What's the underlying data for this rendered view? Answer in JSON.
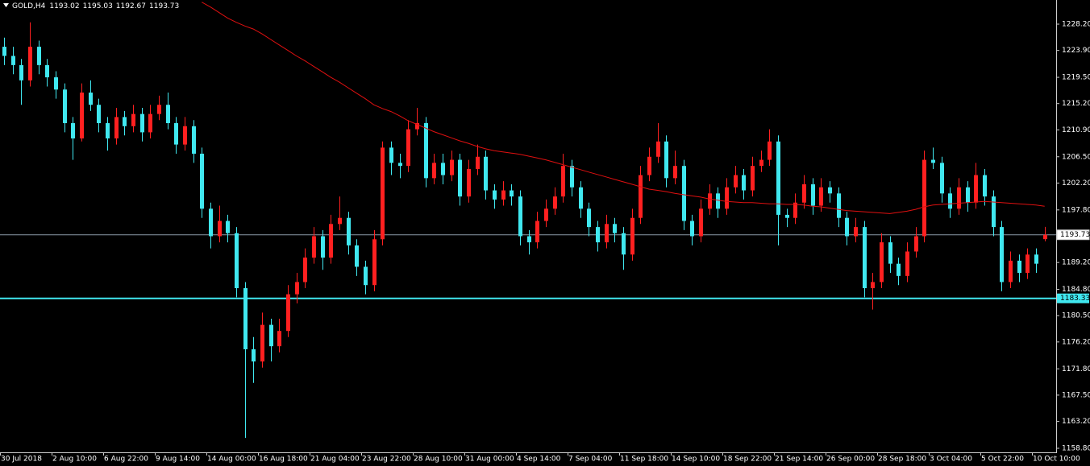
{
  "chart_data": {
    "type": "candlestick",
    "title": "GOLD,H4",
    "quote": [
      1193.02,
      1195.03,
      1192.67,
      1193.73
    ],
    "up_color": "#ff2020",
    "down_color": "#40e8f0",
    "ylim": [
      1158.14,
      1232.15
    ],
    "yticks": [
      {
        "value": 1228.2,
        "label": "1228.20"
      },
      {
        "value": 1223.9,
        "label": "1223.90"
      },
      {
        "value": 1219.5,
        "label": "1219.50"
      },
      {
        "value": 1215.2,
        "label": "1215.20"
      },
      {
        "value": 1210.9,
        "label": "1210.90"
      },
      {
        "value": 1206.5,
        "label": "1206.50"
      },
      {
        "value": 1202.2,
        "label": "1202.20"
      },
      {
        "value": 1197.8,
        "label": "1197.80"
      },
      {
        "value": 1189.2,
        "label": "1189.20"
      },
      {
        "value": 1184.8,
        "label": "1184.80"
      },
      {
        "value": 1180.5,
        "label": "1180.50"
      },
      {
        "value": 1176.2,
        "label": "1176.20"
      },
      {
        "value": 1171.8,
        "label": "1171.80"
      },
      {
        "value": 1167.5,
        "label": "1167.50"
      },
      {
        "value": 1163.2,
        "label": "1163.20"
      },
      {
        "value": 1158.8,
        "label": "1158.80"
      }
    ],
    "bid": 1193.73,
    "bid_color": "#8a9aa8",
    "level": 1183.33,
    "level_color": "#40e8f0",
    "categories": [
      "30 Jul 2018",
      null,
      null,
      null,
      null,
      null,
      "2 Aug 10:00",
      null,
      null,
      null,
      null,
      null,
      "6 Aug 22:00",
      null,
      null,
      null,
      null,
      null,
      "9 Aug 14:00",
      null,
      null,
      null,
      null,
      null,
      "14 Aug 00:00",
      null,
      null,
      null,
      null,
      null,
      "16 Aug 18:00",
      null,
      null,
      null,
      null,
      null,
      "21 Aug 04:00",
      null,
      null,
      null,
      null,
      null,
      "23 Aug 22:00",
      null,
      null,
      null,
      null,
      null,
      "28 Aug 10:00",
      null,
      null,
      null,
      null,
      null,
      "31 Aug 00:00",
      null,
      null,
      null,
      null,
      null,
      "4 Sep 14:00",
      null,
      null,
      null,
      null,
      null,
      "7 Sep 04:00",
      null,
      null,
      null,
      null,
      null,
      "11 Sep 18:00",
      null,
      null,
      null,
      null,
      null,
      "14 Sep 10:00",
      null,
      null,
      null,
      null,
      null,
      "18 Sep 22:00",
      null,
      null,
      null,
      null,
      null,
      "21 Sep 14:00",
      null,
      null,
      null,
      null,
      null,
      "26 Sep 00:00",
      null,
      null,
      null,
      null,
      null,
      "28 Sep 18:00",
      null,
      null,
      null,
      null,
      null,
      "3 Oct 04:00",
      null,
      null,
      null,
      null,
      null,
      "5 Oct 22:00",
      null,
      null,
      null,
      null,
      null,
      "10 Oct 10:00",
      null
    ],
    "ohlc": [
      [
        1224.5,
        1226,
        1221.5,
        1223
      ],
      [
        1223,
        1224.5,
        1220,
        1221.5
      ],
      [
        1221.5,
        1222.5,
        1215,
        1219
      ],
      [
        1219,
        1228.5,
        1218,
        1224.5
      ],
      [
        1224.5,
        1225.5,
        1220,
        1221.5
      ],
      [
        1221.5,
        1222.5,
        1218,
        1219.5
      ],
      [
        1219.5,
        1220.5,
        1216,
        1217.5
      ],
      [
        1217.5,
        1218.5,
        1210.5,
        1212
      ],
      [
        1212,
        1213,
        1206,
        1209.5
      ],
      [
        1209.5,
        1218.5,
        1209,
        1217
      ],
      [
        1217,
        1219,
        1214,
        1215
      ],
      [
        1215,
        1216,
        1210.5,
        1212
      ],
      [
        1212,
        1213,
        1207.5,
        1209.5
      ],
      [
        1209.5,
        1214.5,
        1208.5,
        1213
      ],
      [
        1213,
        1214,
        1210,
        1211.5
      ],
      [
        1211.5,
        1215,
        1210.5,
        1213.5
      ],
      [
        1213.5,
        1214.5,
        1209,
        1210.5
      ],
      [
        1210.5,
        1215,
        1209.5,
        1213.5
      ],
      [
        1213.5,
        1216.5,
        1212.5,
        1215
      ],
      [
        1215,
        1217,
        1211,
        1212
      ],
      [
        1212,
        1213,
        1207,
        1208.5
      ],
      [
        1208.5,
        1213,
        1207.5,
        1211.5
      ],
      [
        1211.5,
        1212.5,
        1205.5,
        1207
      ],
      [
        1207,
        1208,
        1196.5,
        1198
      ],
      [
        1198,
        1199,
        1191.5,
        1193.5
      ],
      [
        1193.5,
        1198.5,
        1192.5,
        1196
      ],
      [
        1196,
        1197,
        1192.5,
        1194
      ],
      [
        1194,
        1195,
        1183.5,
        1185
      ],
      [
        1185,
        1186,
        1160.5,
        1175
      ],
      [
        1175,
        1177,
        1169.5,
        1173
      ],
      [
        1173,
        1181,
        1172,
        1179
      ],
      [
        1179,
        1180,
        1173,
        1175.5
      ],
      [
        1175.5,
        1180,
        1174.5,
        1178
      ],
      [
        1178,
        1185.5,
        1177,
        1184
      ],
      [
        1184,
        1187.5,
        1182.5,
        1186
      ],
      [
        1186,
        1191.5,
        1185,
        1190
      ],
      [
        1190,
        1195,
        1189,
        1193.5
      ],
      [
        1193.5,
        1194.5,
        1188,
        1190
      ],
      [
        1190,
        1197,
        1189,
        1195.5
      ],
      [
        1195.5,
        1200,
        1194.5,
        1196.5
      ],
      [
        1196.5,
        1197.5,
        1190.5,
        1192
      ],
      [
        1192,
        1193,
        1187,
        1188.5
      ],
      [
        1188.5,
        1189.5,
        1184,
        1185.5
      ],
      [
        1185.5,
        1194.5,
        1184.5,
        1193
      ],
      [
        1193,
        1209,
        1192,
        1208
      ],
      [
        1208,
        1209,
        1203.5,
        1205.5
      ],
      [
        1205.5,
        1207,
        1203,
        1205
      ],
      [
        1205,
        1212.5,
        1204,
        1211
      ],
      [
        1211,
        1214.5,
        1210,
        1212
      ],
      [
        1212,
        1213,
        1201.5,
        1203
      ],
      [
        1203,
        1207,
        1202,
        1205.5
      ],
      [
        1205.5,
        1207,
        1202,
        1203.5
      ],
      [
        1203.5,
        1207.5,
        1202.5,
        1206
      ],
      [
        1206,
        1207,
        1198.5,
        1200
      ],
      [
        1200,
        1206,
        1199,
        1204.5
      ],
      [
        1204.5,
        1208.5,
        1203.5,
        1206.5
      ],
      [
        1206.5,
        1207.5,
        1199.5,
        1201
      ],
      [
        1201,
        1202,
        1198,
        1199.5
      ],
      [
        1199.5,
        1202.5,
        1198.5,
        1201
      ],
      [
        1201,
        1202,
        1198.5,
        1200
      ],
      [
        1200,
        1201,
        1192,
        1193.5
      ],
      [
        1193.5,
        1194.5,
        1190.5,
        1192.5
      ],
      [
        1192.5,
        1197.5,
        1191.5,
        1196
      ],
      [
        1196,
        1199.5,
        1195,
        1198
      ],
      [
        1198,
        1201.5,
        1197,
        1200
      ],
      [
        1200,
        1207,
        1199,
        1205
      ],
      [
        1205,
        1206,
        1200,
        1201.5
      ],
      [
        1201.5,
        1202.5,
        1196.5,
        1198
      ],
      [
        1198,
        1199,
        1193.5,
        1195
      ],
      [
        1195,
        1196,
        1191,
        1192.5
      ],
      [
        1192.5,
        1197,
        1191.5,
        1195.5
      ],
      [
        1195.5,
        1196.5,
        1192.5,
        1194
      ],
      [
        1194,
        1195,
        1188,
        1190.5
      ],
      [
        1190.5,
        1198,
        1189.5,
        1196.5
      ],
      [
        1196.5,
        1205,
        1195.5,
        1203.5
      ],
      [
        1203.5,
        1208,
        1202.5,
        1206.5
      ],
      [
        1206.5,
        1212,
        1205.5,
        1209
      ],
      [
        1209,
        1210,
        1201.5,
        1203
      ],
      [
        1203,
        1207.5,
        1202,
        1205
      ],
      [
        1205,
        1206,
        1194.5,
        1196
      ],
      [
        1196,
        1197,
        1192,
        1193.5
      ],
      [
        1193.5,
        1199.5,
        1192.5,
        1198
      ],
      [
        1198,
        1202,
        1197,
        1200.5
      ],
      [
        1200.5,
        1201.5,
        1196.5,
        1198
      ],
      [
        1198,
        1203,
        1197,
        1201.5
      ],
      [
        1201.5,
        1205,
        1200.5,
        1203.5
      ],
      [
        1203.5,
        1204.5,
        1199.5,
        1201
      ],
      [
        1201,
        1206.5,
        1200,
        1205
      ],
      [
        1205,
        1207.5,
        1204,
        1206
      ],
      [
        1206,
        1211,
        1205,
        1209
      ],
      [
        1209,
        1210,
        1192,
        1197
      ],
      [
        1197,
        1198,
        1195,
        1196.5
      ],
      [
        1196.5,
        1200.5,
        1195.5,
        1199
      ],
      [
        1199,
        1203.5,
        1198,
        1202
      ],
      [
        1202,
        1203,
        1197,
        1198.5
      ],
      [
        1198.5,
        1203,
        1197.5,
        1201.5
      ],
      [
        1201.5,
        1202.5,
        1199,
        1200.5
      ],
      [
        1200.5,
        1201.5,
        1195,
        1196.5
      ],
      [
        1196.5,
        1197.5,
        1192,
        1193.5
      ],
      [
        1193.5,
        1196.5,
        1192.5,
        1195
      ],
      [
        1195,
        1196,
        1183.5,
        1185
      ],
      [
        1185,
        1187.5,
        1181.5,
        1186
      ],
      [
        1186,
        1194,
        1185,
        1192.5
      ],
      [
        1192.5,
        1193.5,
        1187.5,
        1189
      ],
      [
        1189,
        1190,
        1185.5,
        1187
      ],
      [
        1187,
        1192.5,
        1186,
        1191
      ],
      [
        1191,
        1195,
        1190,
        1193.5
      ],
      [
        1193.5,
        1207.5,
        1192.5,
        1206
      ],
      [
        1206,
        1208,
        1204.5,
        1205.5
      ],
      [
        1205.5,
        1206.5,
        1199,
        1200.5
      ],
      [
        1200.5,
        1201.5,
        1196.5,
        1198
      ],
      [
        1198,
        1203,
        1197,
        1201.5
      ],
      [
        1201.5,
        1202.5,
        1197.5,
        1199
      ],
      [
        1199,
        1205.5,
        1198,
        1203.5
      ],
      [
        1203.5,
        1204.5,
        1198.5,
        1200
      ],
      [
        1200,
        1201,
        1193.5,
        1195
      ],
      [
        1195,
        1196,
        1184.5,
        1186
      ],
      [
        1186,
        1191,
        1185,
        1189.5
      ],
      [
        1189.5,
        1190.5,
        1186,
        1187.5
      ],
      [
        1187.5,
        1191.5,
        1186.5,
        1190.5
      ],
      [
        1190.5,
        1191.5,
        1187.5,
        1189
      ],
      [
        1193.02,
        1195.03,
        1192.67,
        1193.73
      ]
    ],
    "ma": {
      "color": "#e01010",
      "values": [
        null,
        null,
        null,
        null,
        null,
        null,
        null,
        null,
        null,
        null,
        null,
        null,
        null,
        null,
        null,
        null,
        null,
        null,
        null,
        null,
        null,
        null,
        null,
        1231.8,
        1231.0,
        1230.1,
        1229.2,
        1228.5,
        1227.9,
        1227.4,
        1226.6,
        1225.7,
        1224.8,
        1223.9,
        1223.0,
        1222.2,
        1221.3,
        1220.4,
        1219.5,
        1218.7,
        1217.8,
        1216.9,
        1216.0,
        1215.0,
        1214.4,
        1213.9,
        1213.2,
        1212.4,
        1211.8,
        1211.2,
        1210.6,
        1210.1,
        1209.6,
        1209.1,
        1208.7,
        1208.2,
        1207.8,
        1207.5,
        1207.3,
        1207.1,
        1206.9,
        1206.6,
        1206.3,
        1206.0,
        1205.6,
        1205.2,
        1204.8,
        1204.4,
        1204.0,
        1203.6,
        1203.2,
        1202.8,
        1202.4,
        1202.0,
        1201.6,
        1201.2,
        1201.0,
        1200.8,
        1200.5,
        1200.3,
        1200.1,
        1199.9,
        1199.6,
        1199.4,
        1199.2,
        1199.1,
        1199.0,
        1199.0,
        1198.9,
        1198.8,
        1198.8,
        1198.7,
        1198.7,
        1198.6,
        1198.4,
        1198.3,
        1198.1,
        1197.9,
        1197.7,
        1197.6,
        1197.5,
        1197.4,
        1197.3,
        1197.2,
        1197.4,
        1197.6,
        1197.9,
        1198.3,
        1198.6,
        1198.7,
        1198.8,
        1198.9,
        1199.0,
        1199.1,
        1199.2,
        1199.1,
        1199.0,
        1198.9,
        1198.8,
        1198.7,
        1198.6,
        1198.4
      ]
    }
  }
}
